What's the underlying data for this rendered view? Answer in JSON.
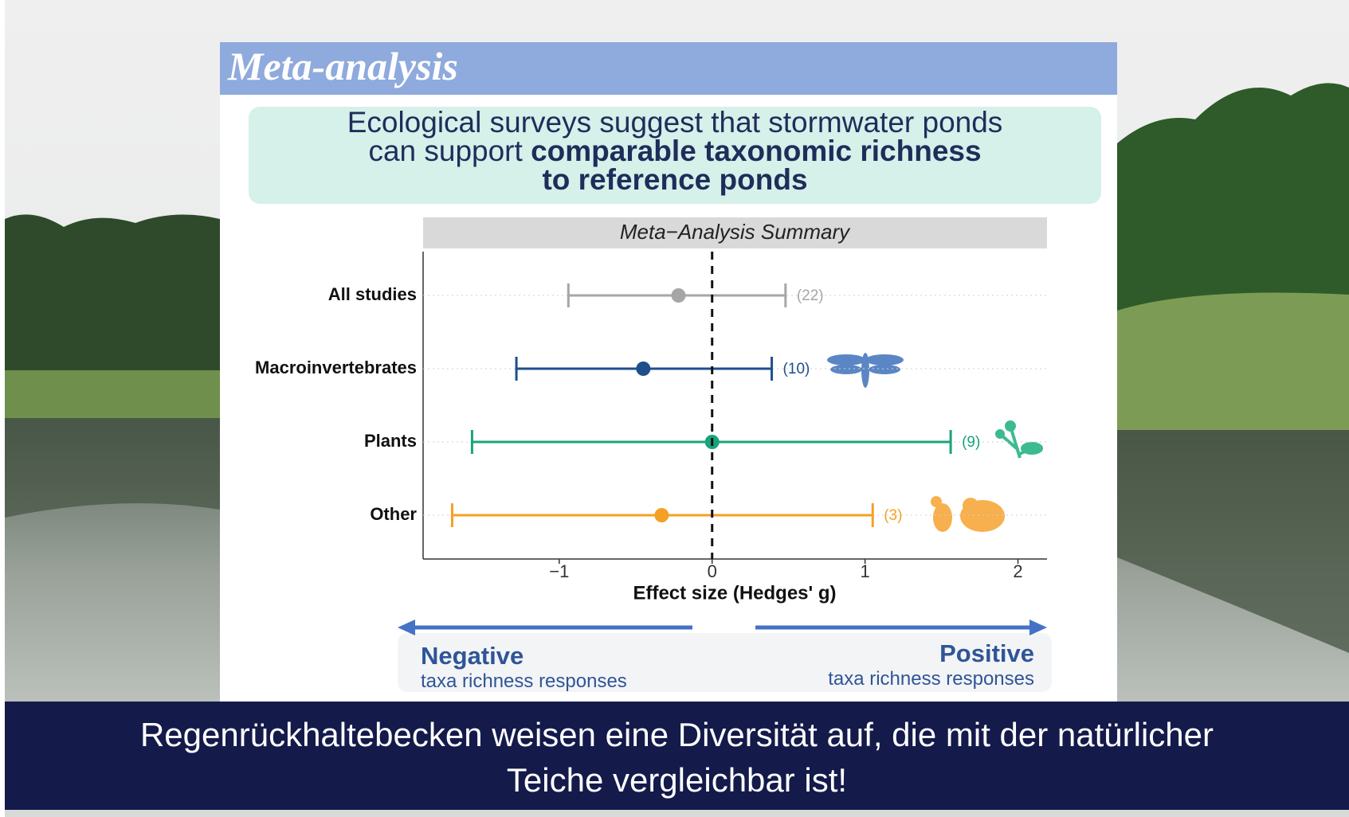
{
  "slide": {
    "title": "Meta-analysis",
    "headline": {
      "line1": "Ecological surveys suggest that stormwater ponds",
      "line2_plain": "can support",
      "line2_bold": "comparable taxonomic richness",
      "line3": "to reference ponds"
    },
    "direction": {
      "negative": "Negative",
      "negative_sub": "taxa richness responses",
      "positive": "Positive",
      "positive_sub": "taxa richness responses"
    },
    "caption": {
      "line1": "Regenrückhaltebecken weisen eine Diversität auf, die mit der natürlicher",
      "line2": "Teiche vergleichbar ist!"
    }
  },
  "chart_data": {
    "type": "forest",
    "title": "Meta−Analysis Summary",
    "x_label": "Effect size (Hedges' g)",
    "xlim": [
      -1.89,
      2.19
    ],
    "xticks": [
      {
        "value": -1,
        "label": "−1"
      },
      0,
      1,
      2
    ],
    "reference_line": 0,
    "series": [
      {
        "name": "All studies",
        "color": "#a6a6a6",
        "estimate": -0.22,
        "lower": -0.94,
        "upper": 0.48,
        "n": 22,
        "n_label": "(22)"
      },
      {
        "name": "Macroinvertebrates",
        "color": "#1f4e8c",
        "estimate": -0.45,
        "lower": -1.28,
        "upper": 0.39,
        "n": 10,
        "n_label": "(10)"
      },
      {
        "name": "Plants",
        "color": "#1aa37a",
        "estimate": 0.0,
        "lower": -1.57,
        "upper": 1.56,
        "n": 9,
        "n_label": "(9)"
      },
      {
        "name": "Other",
        "color": "#f4a024",
        "estimate": -0.33,
        "lower": -1.7,
        "upper": 1.05,
        "n": 3,
        "n_label": "(3)"
      }
    ]
  }
}
